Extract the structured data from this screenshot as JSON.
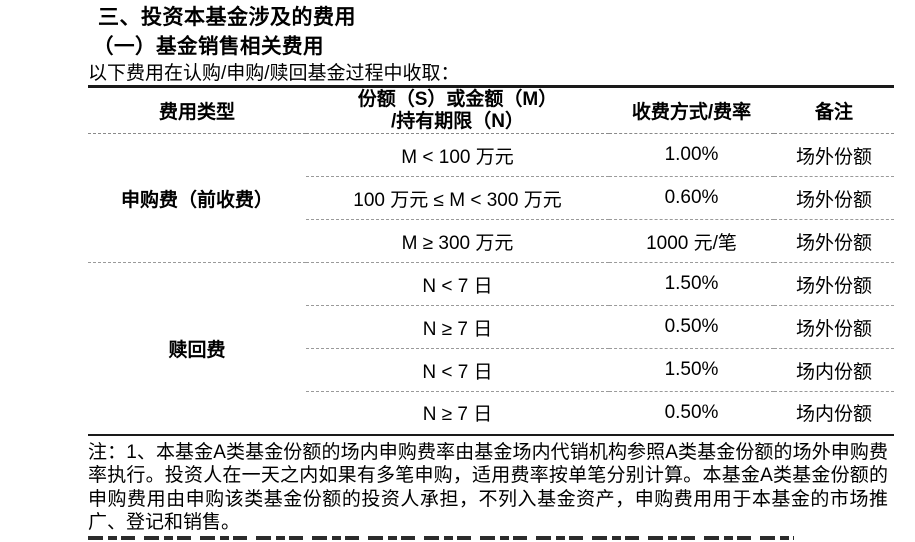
{
  "document": {
    "title": "三、投资本基金涉及的费用",
    "subtitle": "（一）基金销售相关费用",
    "intro": "以下费用在认购/申购/赎回基金过程中收取：",
    "note": "注：1、本基金A类基金份额的场内申购费率由基金场内代销机构参照A类基金份额的场外申购费率执行。投资人在一天之内如果有多笔申购，适用费率按单笔分别计算。本基金A类基金份额的申购费用由申购该类基金份额的投资人承担，不列入基金资产，申购费用用于本基金的市场推广、登记和销售。"
  },
  "fee_table": {
    "headers": {
      "fee_type": "费用类型",
      "amount_line1": "份额（S）或金额（M）",
      "amount_line2": "/持有期限（N）",
      "rate": "收费方式/费率",
      "remark": "备注"
    },
    "groups": [
      {
        "fee_type": "申购费（前收费）",
        "rows": [
          {
            "condition": "M < 100 万元",
            "rate": "1.00%",
            "remark": "场外份额"
          },
          {
            "condition": "100 万元 ≤ M < 300 万元",
            "rate": "0.60%",
            "remark": "场外份额"
          },
          {
            "condition": "M ≥ 300 万元",
            "rate": "1000 元/笔",
            "remark": "场外份额"
          }
        ]
      },
      {
        "fee_type": "赎回费",
        "rows": [
          {
            "condition": "N < 7 日",
            "rate": "1.50%",
            "remark": "场外份额"
          },
          {
            "condition": "N ≥ 7 日",
            "rate": "0.50%",
            "remark": "场外份额"
          },
          {
            "condition": "N < 7 日",
            "rate": "1.50%",
            "remark": "场内份额"
          },
          {
            "condition": "N ≥ 7 日",
            "rate": "0.50%",
            "remark": "场内份额"
          }
        ]
      }
    ]
  }
}
